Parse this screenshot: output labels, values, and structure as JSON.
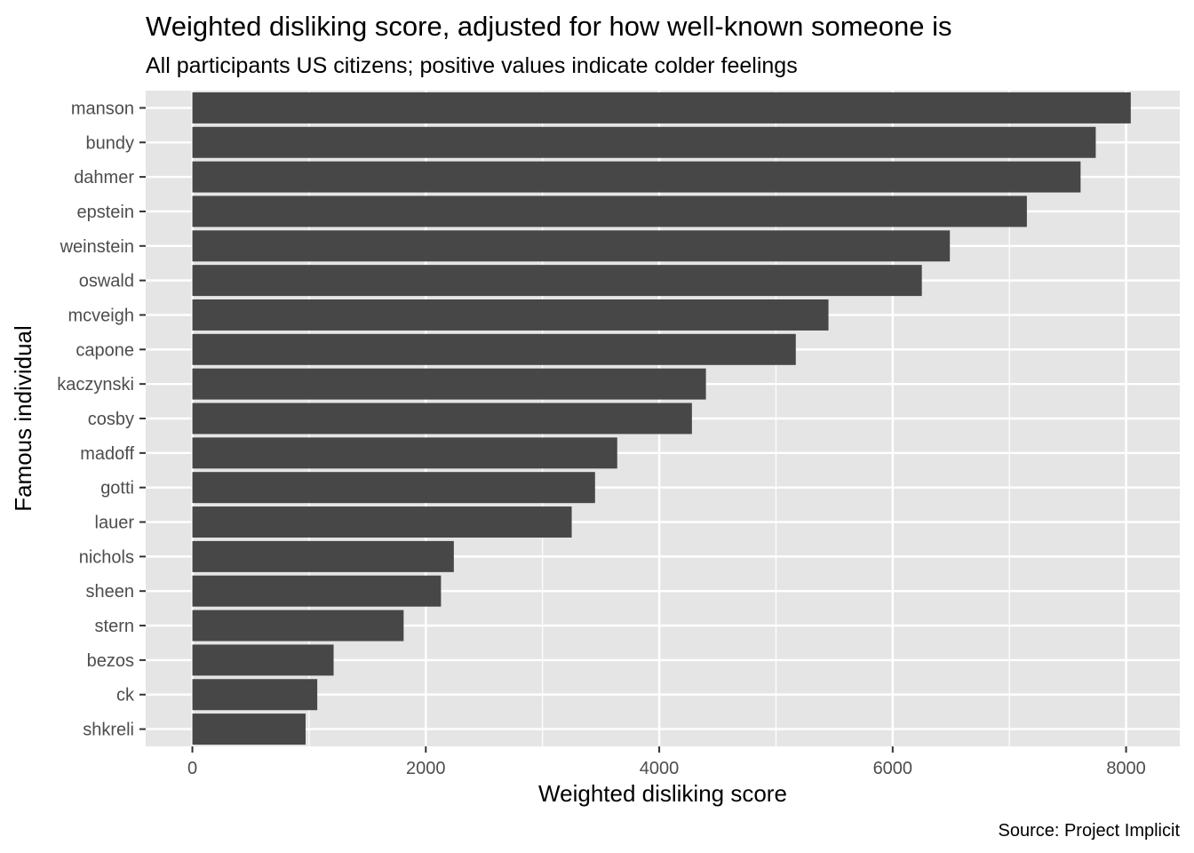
{
  "chart_data": {
    "type": "bar",
    "orientation": "horizontal",
    "title": "Weighted disliking score, adjusted for how well-known someone is",
    "subtitle": "All participants US citizens; positive values indicate colder feelings",
    "xlabel": "Weighted disliking score",
    "ylabel": "Famous individual",
    "caption": "Source: Project Implicit",
    "categories": [
      "manson",
      "bundy",
      "dahmer",
      "epstein",
      "weinstein",
      "oswald",
      "mcveigh",
      "capone",
      "kaczynski",
      "cosby",
      "madoff",
      "gotti",
      "lauer",
      "nichols",
      "sheen",
      "stern",
      "bezos",
      "ck",
      "shkreli"
    ],
    "values": [
      8040,
      7740,
      7610,
      7150,
      6490,
      6250,
      5450,
      5170,
      4400,
      4280,
      3640,
      3450,
      3250,
      2240,
      2130,
      1810,
      1210,
      1070,
      970
    ],
    "xlim": [
      -400,
      8460
    ],
    "xticks": [
      0,
      2000,
      4000,
      6000,
      8000
    ],
    "xtick_labels": [
      "0",
      "2000",
      "4000",
      "6000",
      "8000"
    ],
    "grid": true,
    "bar_color": "#474747",
    "panel_color": "#e5e5e5",
    "grid_color": "#ffffff"
  }
}
